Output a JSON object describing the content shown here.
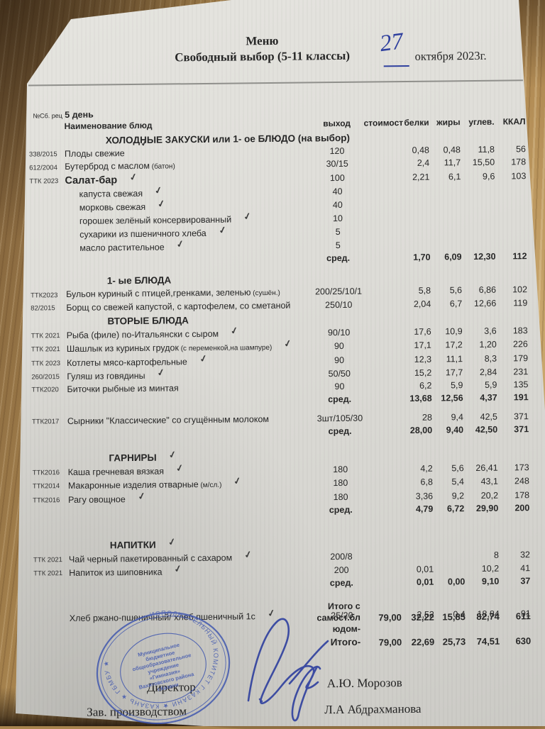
{
  "header": {
    "title": "Меню",
    "subtitle": "Свободный выбор (5-11 классы)",
    "date_day": "27",
    "date_rest": "октября  2023г."
  },
  "meta": {
    "recipe_ref": "№Сб. рец",
    "day": "5 день"
  },
  "table": {
    "columns": {
      "name": "Наименование  блюд",
      "yield": "выход",
      "cost": "стоимост",
      "protein": "белки",
      "fat": "жиры",
      "carbs": "углев.",
      "kcal": "ККАЛ"
    },
    "lines": [
      {
        "type": "section",
        "title": "ХОЛОДНЫЕ  ЗАКУСКИ  или 1- ое БЛЮДО (на выбор)",
        "check": true,
        "check_over": true
      },
      {
        "type": "item",
        "code": "338/2015",
        "name": "Плоды свежие",
        "yield": "120",
        "protein": "0,48",
        "fat": "0,48",
        "carbs": "11,8",
        "kcal": "56"
      },
      {
        "type": "item",
        "code": "612/2004",
        "name": "Бутерброд с маслом",
        "note": "(батон)",
        "yield": "30/15",
        "protein": "2,4",
        "fat": "11,7",
        "carbs": "15,50",
        "kcal": "178"
      },
      {
        "type": "item",
        "bold": true,
        "code": "ТТК 2023",
        "name": "Салат-бар",
        "yield": "100",
        "protein": "2,21",
        "fat": "6,1",
        "carbs": "9,6",
        "kcal": "103",
        "check": true
      },
      {
        "type": "sub",
        "name": "капуста свежая",
        "yield": "40",
        "check": true
      },
      {
        "type": "sub",
        "name": "морковь свежая",
        "yield": "40",
        "check": true
      },
      {
        "type": "sub",
        "name": "горошек зелёный консервированный",
        "yield": "10",
        "check": true
      },
      {
        "type": "sub",
        "name": "сухарики из пшеничного хлеба",
        "yield": "5",
        "check": true
      },
      {
        "type": "sub",
        "name": "масло растительное",
        "yield": "5",
        "check": true
      },
      {
        "type": "avg",
        "label": "сред.",
        "protein": "1,70",
        "fat": "6,09",
        "carbs": "12,30",
        "kcal": "112"
      },
      {
        "type": "gap",
        "size": "sm"
      },
      {
        "type": "section",
        "title": "1- ые БЛЮДА"
      },
      {
        "type": "item",
        "code": "ТТК2023",
        "name": "Бульон куриный с птицей,гренками, зеленью",
        "note": "(сушён.)",
        "yield": "200/25/10/1",
        "protein": "5,8",
        "fat": "5,6",
        "carbs": "6,86",
        "kcal": "102"
      },
      {
        "type": "item",
        "code": "82/2015",
        "name": "Борщ со свежей капустой, с картофелем, со сметаной",
        "yield": "250/10",
        "protein": "2,04",
        "fat": "6,7",
        "carbs": "12,66",
        "kcal": "119"
      },
      {
        "type": "section",
        "title": "ВТОРЫЕ  БЛЮДА"
      },
      {
        "type": "item",
        "code": "ТТК 2021",
        "name": "Рыба (филе) по-Итальянски с сыром",
        "yield": "90/10",
        "protein": "17,6",
        "fat": "10,9",
        "carbs": "3,6",
        "kcal": "183",
        "check": true
      },
      {
        "type": "item",
        "code": "ТТК 2021",
        "name": "Шашлык  из куриных грудок",
        "note": "(с переменкой,на шампуре)",
        "yield": "90",
        "protein": "17,1",
        "fat": "17,2",
        "carbs": "1,20",
        "kcal": "226",
        "check": true
      },
      {
        "type": "item",
        "code": "ТТК 2023",
        "name": "Котлеты  мясо-картофельные",
        "yield": "90",
        "protein": "12,3",
        "fat": "11,1",
        "carbs": "8,3",
        "kcal": "179",
        "check": true
      },
      {
        "type": "item",
        "code": "260/2015",
        "name": "Гуляш из говядины",
        "yield": "50/50",
        "protein": "15,2",
        "fat": "17,7",
        "carbs": "2,84",
        "kcal": "231",
        "check": true
      },
      {
        "type": "item",
        "code": "ТТК2020",
        "name": "Биточки рыбные из минтая",
        "yield": "90",
        "protein": "6,2",
        "fat": "5,9",
        "carbs": "5,9",
        "kcal": "135"
      },
      {
        "type": "avg",
        "label": "сред.",
        "protein": "13,68",
        "fat": "12,56",
        "carbs": "4,37",
        "kcal": "191"
      },
      {
        "type": "gap",
        "size": "sm"
      },
      {
        "type": "item",
        "code": "ТТК2017",
        "name": "Сырники \"Классические\" со сгущённым молоком",
        "yield": "3шт/105/30",
        "protein": "28",
        "fat": "9,4",
        "carbs": "42,5",
        "kcal": "371"
      },
      {
        "type": "avg",
        "label": "сред.",
        "protein": "28,00",
        "fat": "9,40",
        "carbs": "42,50",
        "kcal": "371"
      },
      {
        "type": "gap",
        "size": "md"
      },
      {
        "type": "section",
        "title": "ГАРНИРЫ",
        "check": true
      },
      {
        "type": "item",
        "code": "ТТК2016",
        "name": "Каша гречневая вязкая",
        "yield": "180",
        "protein": "4,2",
        "fat": "5,6",
        "carbs": "26,41",
        "kcal": "173",
        "check": true
      },
      {
        "type": "item",
        "code": "ТТК2014",
        "name": "Макаронные изделия отварные",
        "note": "(м/сл.)",
        "yield": "180",
        "protein": "6,8",
        "fat": "5,4",
        "carbs": "43,1",
        "kcal": "248",
        "check": true
      },
      {
        "type": "item",
        "code": "ТТК2016",
        "name": "Рагу овощное",
        "yield": "180",
        "protein": "3,36",
        "fat": "9,2",
        "carbs": "20,2",
        "kcal": "178",
        "check": true
      },
      {
        "type": "avg",
        "label": "сред.",
        "protein": "4,79",
        "fat": "6,72",
        "carbs": "29,90",
        "kcal": "200"
      },
      {
        "type": "gap",
        "size": "lg"
      },
      {
        "type": "section",
        "title": "НАПИТКИ",
        "check": true
      },
      {
        "type": "item",
        "code": "ТТК 2021",
        "name": "Чай черный пакетированный с сахаром",
        "yield": "200/8",
        "carbs": "8",
        "kcal": "32",
        "check": true
      },
      {
        "type": "item",
        "code": "ТТК 2021",
        "name": "Напиток из шиповника",
        "yield": "200",
        "protein": "0,01",
        "carbs": "10,2",
        "kcal": "41",
        "check": true
      },
      {
        "type": "avg",
        "label": "сред.",
        "protein": "0,01",
        "fat": "0,00",
        "carbs": "9,10",
        "kcal": "37"
      },
      {
        "type": "gap",
        "size": "lg"
      },
      {
        "type": "bread",
        "name": "Хлеб ржано-пшеничный/ хлеб пшеничный 1с",
        "yield": "25/20",
        "protein": "2,52",
        "fat": "0,4",
        "carbs": "18,84",
        "kcal": "91",
        "check": true
      }
    ]
  },
  "totals": {
    "row1": {
      "label_lines": [
        "Итого с",
        "самост.бл",
        "юдом-"
      ],
      "cost": "79,00",
      "protein": "32,22",
      "fat": "15,85",
      "carbs": "82,74",
      "kcal": "611"
    },
    "row2": {
      "label": "Итого-",
      "cost": "79,00",
      "protein": "22,69",
      "fat": "25,73",
      "carbs": "74,51",
      "kcal": "630"
    }
  },
  "signatures": {
    "director_label": "Директор",
    "director_name": "А.Ю. Морозов",
    "chef_label": "Зав. производством",
    "chef_name": "Л.А Абдрахманова"
  },
  "stamp": {
    "outer_text": "ИСПОЛНИТЕЛЬНЫЙ КОМИТЕТ Г.КАЗАНИ ★ КАЗАНЬ ★ ГБМБУ ★",
    "center_lines": [
      "Муниципальное",
      "бюджетное",
      "общеобразовательное",
      "учреждение",
      "«Гимназия»",
      "Вахитовского района",
      "г.Казани"
    ]
  },
  "colors": {
    "ink_blue": "#2e3f9e",
    "stamp_blue": "#3a52ae",
    "paper": "#deddd8",
    "wood": "#b28c55",
    "text": "#262626"
  }
}
